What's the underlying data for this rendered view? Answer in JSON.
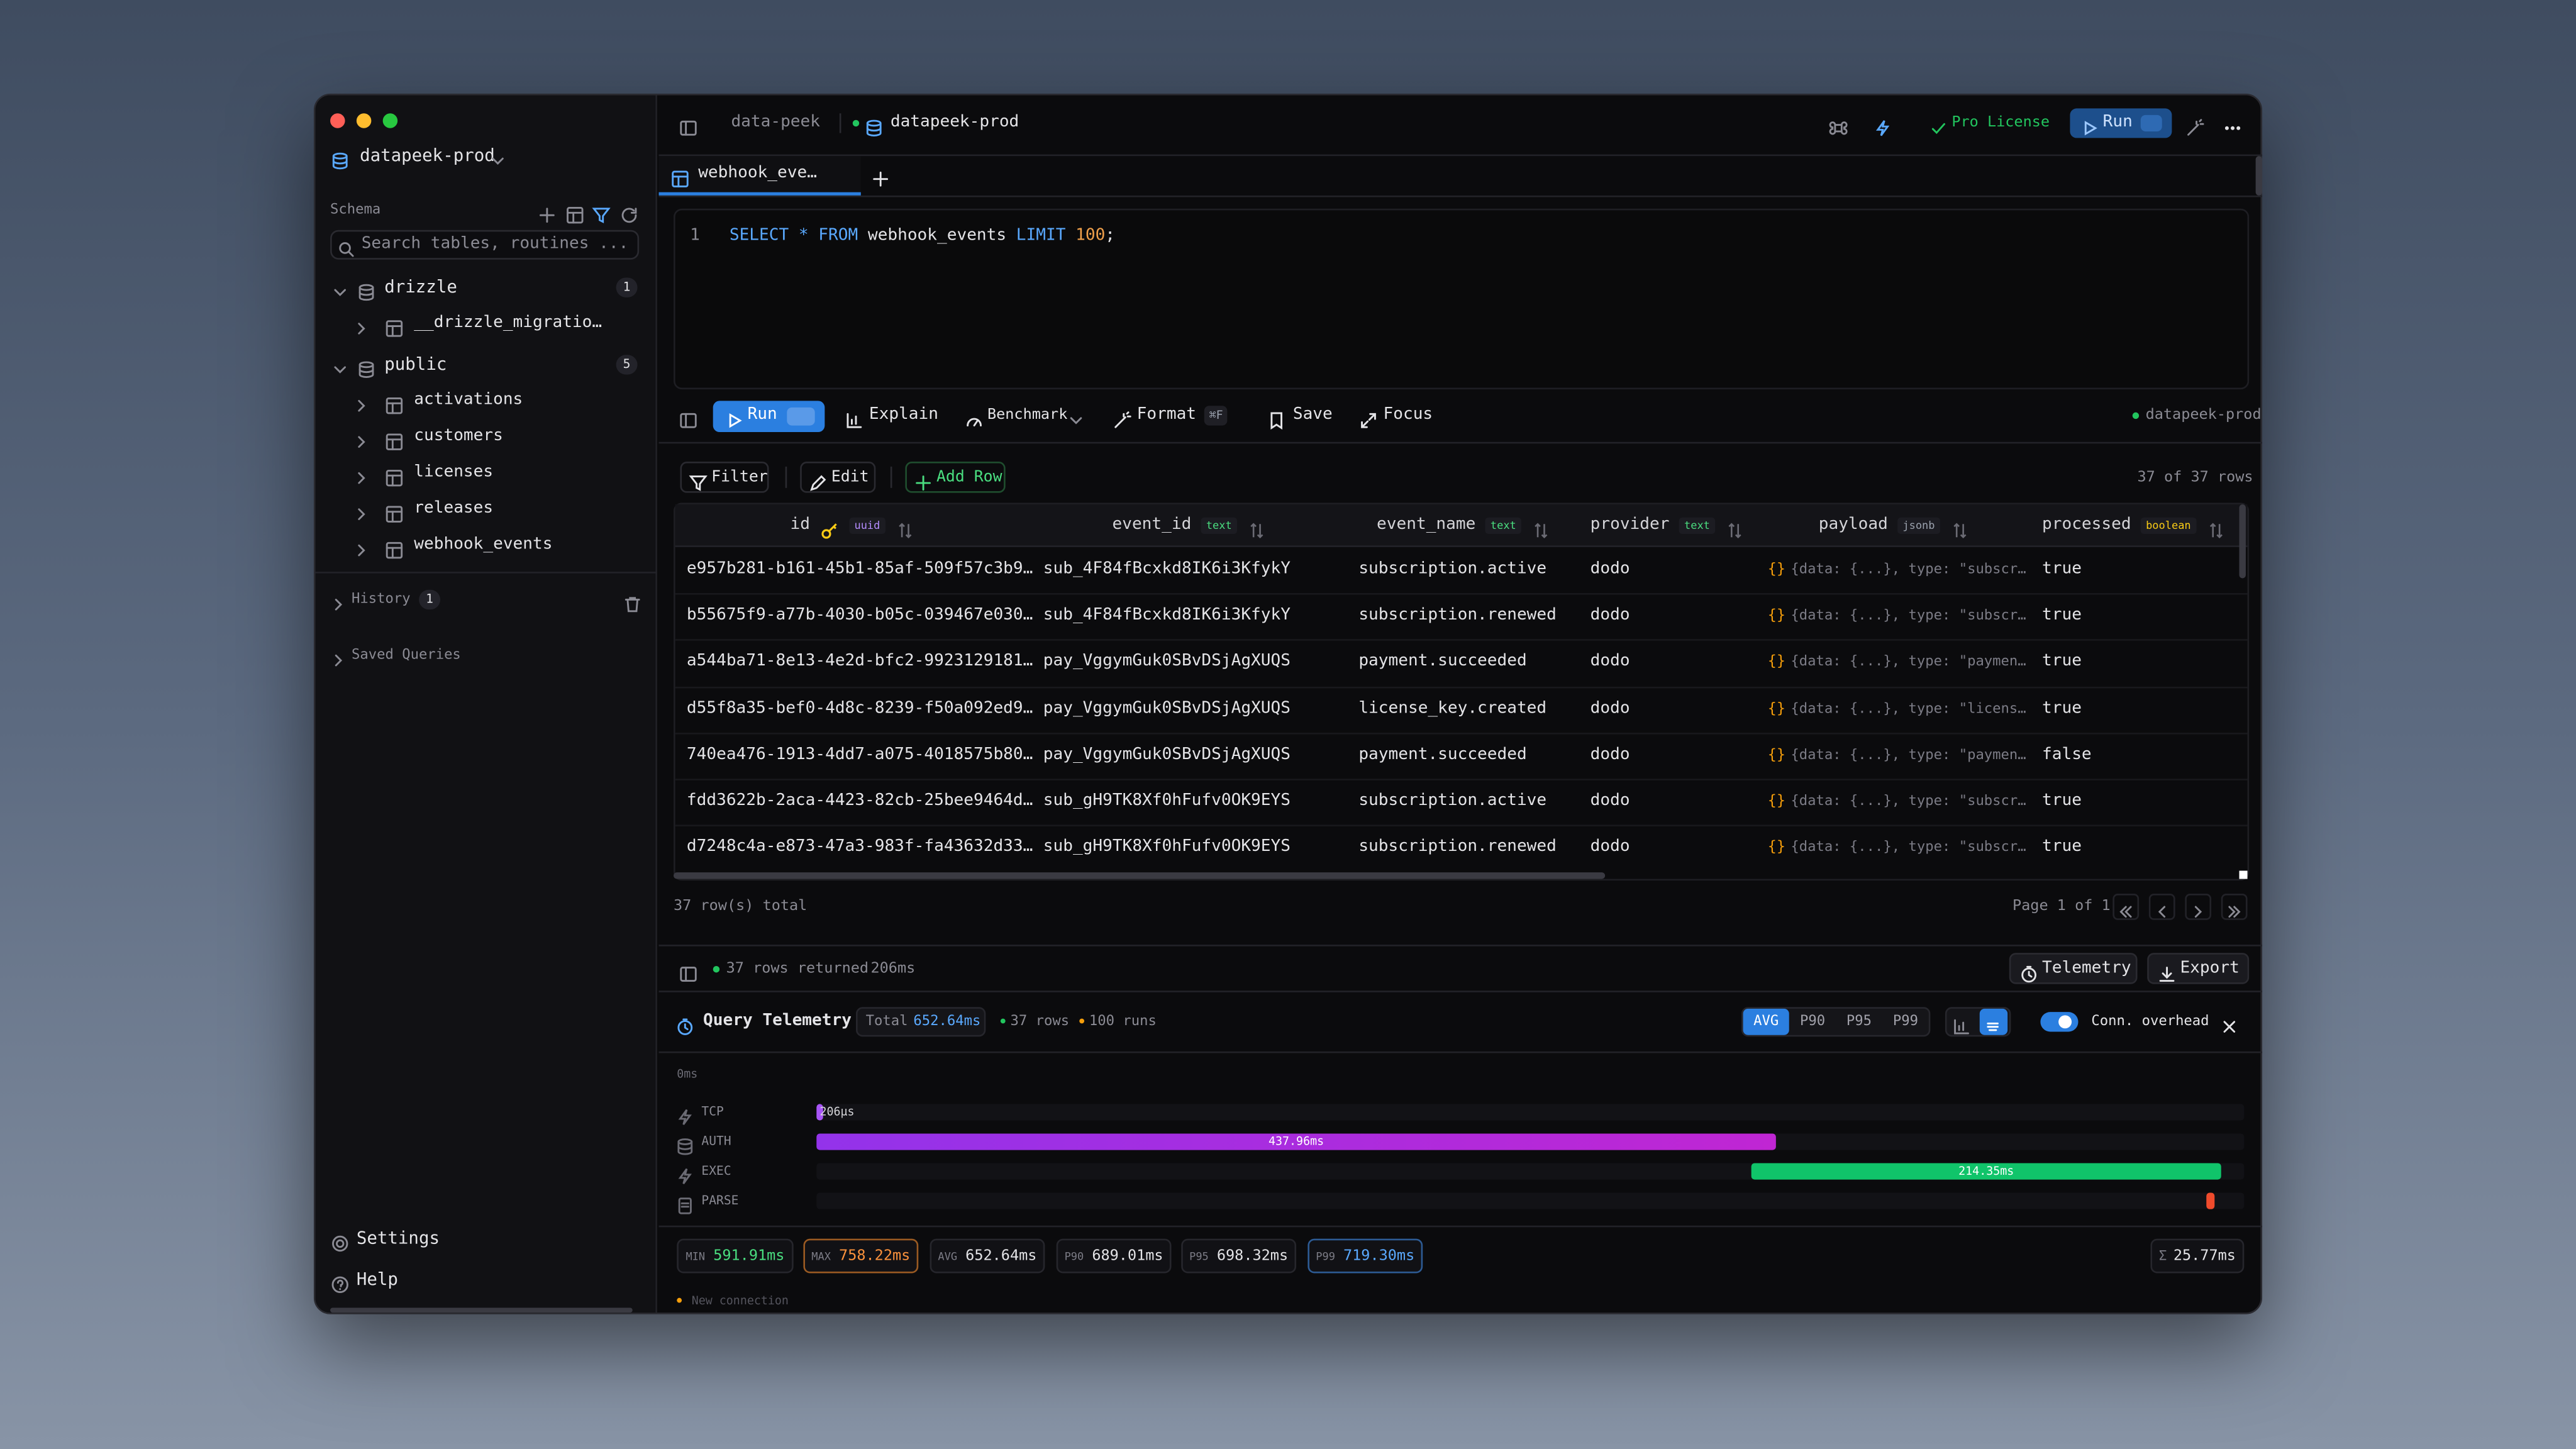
{
  "sidebar": {
    "workspace": "datapeek-prod",
    "schema_label": "Schema",
    "search_placeholder": "Search tables, routines ...",
    "schemas": [
      {
        "name": "drizzle",
        "count": 1,
        "tables": [
          "__drizzle_migratio…"
        ]
      },
      {
        "name": "public",
        "count": 5,
        "tables": [
          "activations",
          "customers",
          "licenses",
          "releases",
          "webhook_events"
        ]
      }
    ],
    "history": {
      "label": "History",
      "count": 1
    },
    "saved_queries": "Saved Queries",
    "settings": "Settings",
    "help": "Help"
  },
  "topbar": {
    "project": "data-peek",
    "connection": "datapeek-prod",
    "license": "Pro License",
    "run": "Run"
  },
  "editor": {
    "tab": "webhook_eve…",
    "line": 1,
    "sql": [
      {
        "text": "SELECT",
        "color": "#5aa9ff"
      },
      {
        "text": "*",
        "color": "#5aa9ff"
      },
      {
        "text": "FROM",
        "color": "#5aa9ff"
      },
      {
        "text": "webhook_events",
        "color": "#e4e4e7"
      },
      {
        "text": "LIMIT",
        "color": "#5aa9ff"
      },
      {
        "text": "100",
        "color": "#f0a04b"
      },
      {
        "text": ";",
        "color": "#e4e4e7"
      }
    ]
  },
  "toolbar": {
    "run": "Run",
    "explain": "Explain",
    "benchmark": "Benchmark",
    "format": "Format",
    "format_key": "⌘F",
    "save": "Save",
    "focus": "Focus",
    "connection": "datapeek-prod"
  },
  "grid": {
    "filter": "Filter",
    "edit": "Edit",
    "add_row": "Add Row",
    "row_count": "37 of 37 rows",
    "columns": [
      {
        "name": "id",
        "type": "uuid",
        "color": "#b48cff"
      },
      {
        "name": "event_id",
        "type": "text",
        "color": "#4ade80"
      },
      {
        "name": "event_name",
        "type": "text",
        "color": "#4ade80"
      },
      {
        "name": "provider",
        "type": "text",
        "color": "#4ade80"
      },
      {
        "name": "payload",
        "type": "jsonb",
        "color": "#9ca3af"
      },
      {
        "name": "processed",
        "type": "boolean",
        "color": "#facc15"
      }
    ],
    "rows": [
      [
        "e957b281-b161-45b1-85af-509f57c3b9…",
        "sub_4F84fBcxkd8IK6i3KfykY",
        "subscription.active",
        "dodo",
        "{data: {...}, type: \"subscr…",
        "true"
      ],
      [
        "b55675f9-a77b-4030-b05c-039467e030…",
        "sub_4F84fBcxkd8IK6i3KfykY",
        "subscription.renewed",
        "dodo",
        "{data: {...}, type: \"subscr…",
        "true"
      ],
      [
        "a544ba71-8e13-4e2d-bfc2-9923129181…",
        "pay_VggymGuk0SBvDSjAgXUQS",
        "payment.succeeded",
        "dodo",
        "{data: {...}, type: \"paymen…",
        "true"
      ],
      [
        "d55f8a35-bef0-4d8c-8239-f50a092ed9…",
        "pay_VggymGuk0SBvDSjAgXUQS",
        "license_key.created",
        "dodo",
        "{data: {...}, type: \"licens…",
        "true"
      ],
      [
        "740ea476-1913-4dd7-a075-4018575b80…",
        "pay_VggymGuk0SBvDSjAgXUQS",
        "payment.succeeded",
        "dodo",
        "{data: {...}, type: \"paymen…",
        "false"
      ],
      [
        "fdd3622b-2aca-4423-82cb-25bee9464d…",
        "sub_gH9TK8Xf0hFufv0OK9EYS",
        "subscription.active",
        "dodo",
        "{data: {...}, type: \"subscr…",
        "true"
      ],
      [
        "d7248c4a-e873-47a3-983f-fa43632d33…",
        "sub_gH9TK8Xf0hFufv0OK9EYS",
        "subscription.renewed",
        "dodo",
        "{data: {...}, type: \"subscr…",
        "true"
      ]
    ],
    "total": "37 row(s) total",
    "page": "Page 1 of 1"
  },
  "status": {
    "rows_returned": "37 rows returned",
    "duration": "206ms",
    "telemetry": "Telemetry",
    "export": "Export"
  },
  "telemetry": {
    "title": "Query Telemetry",
    "total_label": "Total",
    "total": "652.64ms",
    "rows": "37 rows",
    "runs": "100 runs",
    "percentiles": [
      "AVG",
      "P90",
      "P95",
      "P99"
    ],
    "conn_overhead": "Conn. overhead",
    "axis_start": "0ms",
    "phases": [
      {
        "name": "TCP",
        "duration": "206µs"
      },
      {
        "name": "AUTH",
        "duration": "437.96ms"
      },
      {
        "name": "EXEC",
        "duration": "214.35ms"
      },
      {
        "name": "PARSE"
      }
    ],
    "stats": [
      {
        "label": "MIN",
        "value": "591.91ms",
        "color": "#4ade80"
      },
      {
        "label": "MAX",
        "value": "758.22ms",
        "color": "#fb923c",
        "border": "#9a5a22"
      },
      {
        "label": "AVG",
        "value": "652.64ms",
        "color": "#e4e4e7"
      },
      {
        "label": "P90",
        "value": "689.01ms",
        "color": "#e4e4e7"
      },
      {
        "label": "P95",
        "value": "698.32ms",
        "color": "#e4e4e7"
      },
      {
        "label": "P99",
        "value": "719.30ms",
        "color": "#5aa9ff",
        "border": "#2d5b94"
      }
    ],
    "sum": "25.77ms",
    "note": "New connection"
  }
}
